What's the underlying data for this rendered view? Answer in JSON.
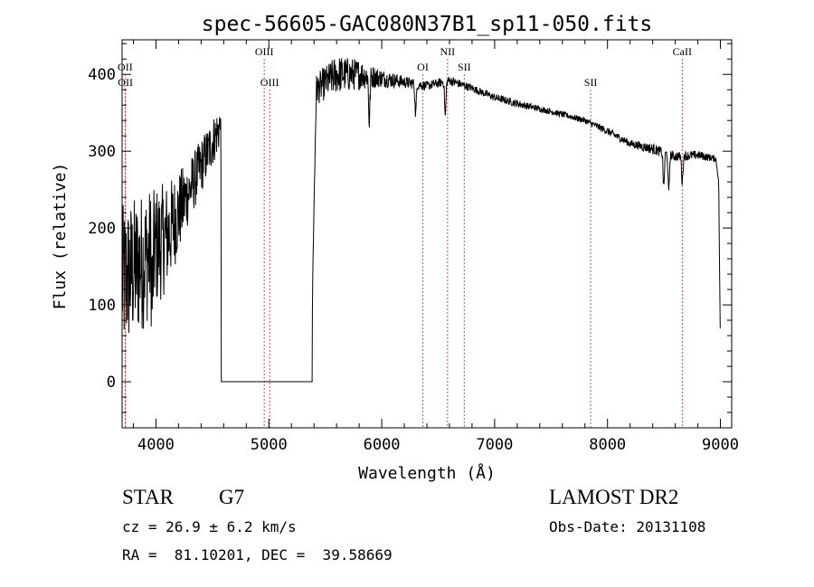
{
  "chart_data": {
    "type": "line",
    "title": "spec-56605-GAC080N37B1_sp11-050.fits",
    "xlabel": "Wavelength (Å)",
    "ylabel": "Flux (relative)",
    "xlim": [
      3700,
      9100
    ],
    "ylim": [
      -60,
      445
    ],
    "x_ticks": [
      4000,
      5000,
      6000,
      7000,
      8000,
      9000
    ],
    "y_ticks": [
      0,
      100,
      200,
      300,
      400
    ],
    "grid": false,
    "line_color": "#000000",
    "marker_color": "#c8554f",
    "spectrum_anchors": {
      "x": [
        3700,
        3900,
        4100,
        4300,
        4560,
        4575,
        4580,
        5380,
        5390,
        5420,
        5600,
        5800,
        6000,
        6200,
        6400,
        6600,
        6800,
        7000,
        7200,
        7400,
        7600,
        7800,
        8000,
        8200,
        8400,
        8600,
        8800,
        8960,
        8985,
        9000
      ],
      "y": [
        130,
        160,
        190,
        250,
        330,
        340,
        0,
        0,
        150,
        380,
        400,
        400,
        395,
        390,
        385,
        392,
        382,
        370,
        362,
        355,
        348,
        340,
        326,
        310,
        303,
        293,
        295,
        290,
        260,
        40
      ],
      "noise": [
        100,
        90,
        70,
        40,
        30,
        0,
        0,
        0,
        0,
        20,
        25,
        20,
        12,
        8,
        6,
        6,
        5,
        5,
        5,
        4,
        4,
        4,
        5,
        5,
        7,
        6,
        6,
        4,
        0,
        0
      ]
    },
    "absorption_dips": [
      {
        "x": 3968,
        "depth": 60
      },
      {
        "x": 5890,
        "depth": 60
      },
      {
        "x": 6300,
        "depth": 40
      },
      {
        "x": 6563,
        "depth": 45
      },
      {
        "x": 8498,
        "depth": 45
      },
      {
        "x": 8542,
        "depth": 50
      },
      {
        "x": 8662,
        "depth": 35
      }
    ],
    "line_markers": [
      {
        "label": "OII",
        "x": 3727,
        "row": "upper"
      },
      {
        "label": "OII",
        "x": 3729,
        "row": "lower"
      },
      {
        "label": "OIII",
        "x": 4959,
        "row": "top"
      },
      {
        "label": "OIII",
        "x": 5007,
        "row": "lower"
      },
      {
        "label": "OI",
        "x": 6364,
        "row": "upper"
      },
      {
        "label": "NII",
        "x": 6583,
        "row": "top"
      },
      {
        "label": "SII",
        "x": 6731,
        "row": "upper"
      },
      {
        "label": "SII",
        "x": 7851,
        "row": "lower"
      },
      {
        "label": "CaII",
        "x": 8662,
        "row": "top"
      }
    ]
  },
  "info": {
    "object_class": "STAR",
    "subclass": "G7",
    "survey": "LAMOST DR2",
    "redshift": "cz = 26.9 ± 6.2 km/s",
    "obs_date": "Obs-Date: 20131108",
    "coords": "RA =  81.10201, DEC =  39.58669"
  }
}
